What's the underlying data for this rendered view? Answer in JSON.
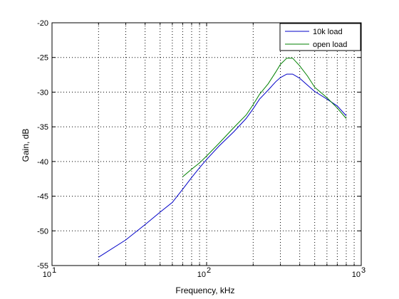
{
  "chart_data": {
    "type": "line",
    "title": "",
    "xlabel": "Frequency, kHz",
    "ylabel": "Gain, dB",
    "xscale": "log",
    "xlim": [
      10,
      1000
    ],
    "ylim": [
      -55,
      -20
    ],
    "x_ticks": [
      {
        "value": 10,
        "base": "10",
        "exp": "1"
      },
      {
        "value": 100,
        "base": "10",
        "exp": "2"
      },
      {
        "value": 1000,
        "base": "10",
        "exp": "3"
      }
    ],
    "y_ticks": [
      -55,
      -50,
      -45,
      -40,
      -35,
      -30,
      -25,
      -20
    ],
    "y_tick_labels": [
      "-55",
      "-50",
      "-45",
      "-40",
      "-35",
      "-30",
      "-25",
      "-20"
    ],
    "grid": true,
    "grid_style": "dotted",
    "legend_position": "top-right",
    "series": [
      {
        "name": "10k load",
        "color": "#0000c8",
        "points": [
          [
            20,
            -53.8
          ],
          [
            30,
            -51.3
          ],
          [
            40,
            -49.1
          ],
          [
            50,
            -47.3
          ],
          [
            60,
            -45.9
          ],
          [
            70,
            -44.0
          ],
          [
            80,
            -42.3
          ],
          [
            90,
            -40.9
          ],
          [
            100,
            -39.7
          ],
          [
            120,
            -37.8
          ],
          [
            150,
            -35.7
          ],
          [
            180,
            -33.8
          ],
          [
            200,
            -32.4
          ],
          [
            220,
            -31.0
          ],
          [
            250,
            -29.7
          ],
          [
            280,
            -28.5
          ],
          [
            300,
            -27.9
          ],
          [
            330,
            -27.4
          ],
          [
            360,
            -27.4
          ],
          [
            400,
            -28.0
          ],
          [
            450,
            -29.0
          ],
          [
            500,
            -29.9
          ],
          [
            600,
            -31.0
          ],
          [
            700,
            -32.0
          ],
          [
            800,
            -33.4
          ]
        ]
      },
      {
        "name": "open load",
        "color": "#008000",
        "points": [
          [
            70,
            -42.2
          ],
          [
            80,
            -41.1
          ],
          [
            90,
            -40.2
          ],
          [
            100,
            -39.2
          ],
          [
            120,
            -37.4
          ],
          [
            150,
            -35.1
          ],
          [
            180,
            -33.3
          ],
          [
            200,
            -31.8
          ],
          [
            220,
            -30.3
          ],
          [
            250,
            -28.8
          ],
          [
            280,
            -27.1
          ],
          [
            300,
            -26.0
          ],
          [
            330,
            -25.1
          ],
          [
            360,
            -25.1
          ],
          [
            400,
            -26.2
          ],
          [
            450,
            -27.7
          ],
          [
            500,
            -29.3
          ],
          [
            600,
            -30.8
          ],
          [
            700,
            -32.3
          ],
          [
            800,
            -33.8
          ]
        ]
      }
    ]
  }
}
